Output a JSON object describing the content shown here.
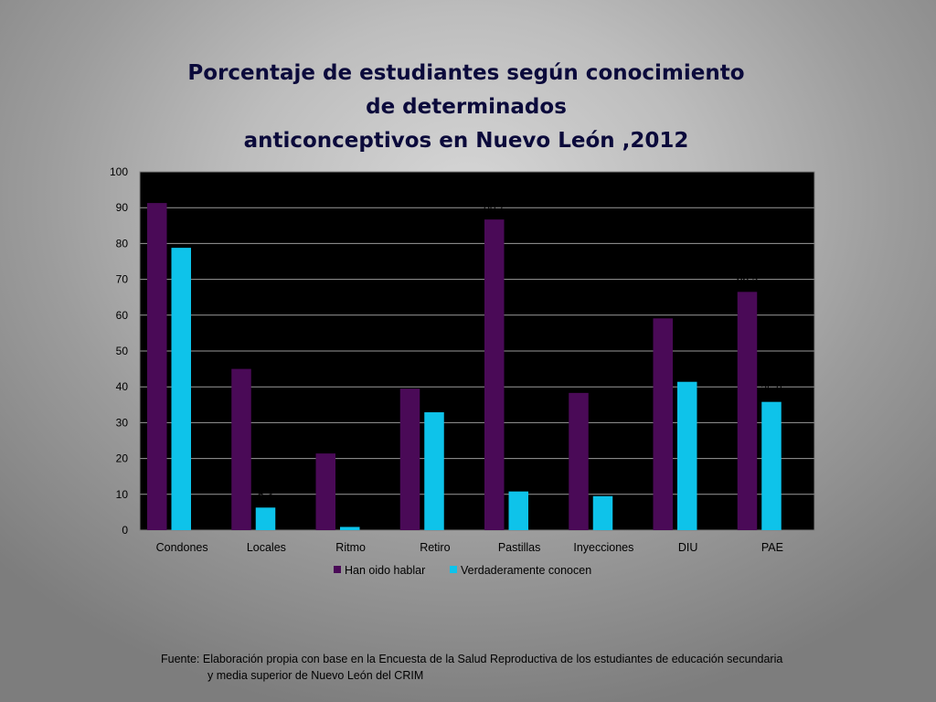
{
  "title_lines": [
    "Porcentaje de estudiantes según conocimiento",
    "de determinados",
    "anticonceptivos en Nuevo León ,2012"
  ],
  "source": {
    "line1": "Fuente: Elaboración propia con base en la Encuesta de la Salud Reproductiva de los estudiantes de educación secundaria",
    "line2": "y media superior de Nuevo León del CRIM"
  },
  "chart_data": {
    "type": "bar",
    "title": "Porcentaje de estudiantes según conocimiento de determinados anticonceptivos en Nuevo León ,2012",
    "xlabel": "",
    "ylabel": "",
    "ylim": [
      0,
      100
    ],
    "yticks": [
      0,
      10,
      20,
      30,
      40,
      50,
      60,
      70,
      80,
      90,
      100
    ],
    "grid": true,
    "legend_position": "bottom",
    "plot_background": "#000000",
    "categories": [
      "Condones",
      "Locales",
      "Ritmo",
      "Retiro",
      "Pastillas",
      "Inyecciones",
      "DIU",
      "PAE"
    ],
    "series": [
      {
        "name": "Han oido hablar",
        "color": "#4a0a57",
        "values": [
          91.3,
          45,
          21.4,
          39.5,
          86.7,
          38.3,
          59.1,
          66.5
        ],
        "labels": [
          "91,3",
          "45",
          "21,4",
          "39,5",
          "86,7",
          "38,3",
          "59,1",
          "66,5"
        ]
      },
      {
        "name": "Verdaderamente conocen",
        "color": "#0ec3ea",
        "values": [
          78.8,
          6.3,
          0.9,
          32.9,
          10.8,
          9.5,
          41.4,
          35.8
        ],
        "labels": [
          "78,8",
          "6,3",
          "0,9",
          "32,9",
          "10,8",
          "9,5",
          "41,4",
          "35,8"
        ]
      }
    ]
  }
}
